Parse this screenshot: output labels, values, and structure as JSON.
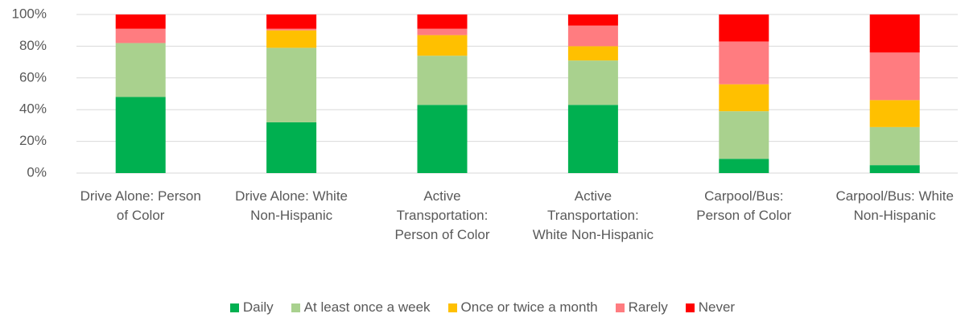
{
  "chart_data": {
    "type": "stacked_bar",
    "categories": [
      "Drive Alone: Person of Color",
      "Drive Alone: White Non-Hispanic",
      "Active Transportation: Person of Color",
      "Active Transportation: White Non-Hispanic",
      "Carpool/Bus: Person of Color",
      "Carpool/Bus: White Non-Hispanic"
    ],
    "series": [
      {
        "name": "Daily",
        "color": "#00b050",
        "values": [
          48,
          32,
          43,
          43,
          9,
          5
        ]
      },
      {
        "name": "At least once a week",
        "color": "#a9d18e",
        "values": [
          34,
          47,
          31,
          28,
          30,
          24
        ]
      },
      {
        "name": "Once or twice a month",
        "color": "#ffc000",
        "values": [
          0,
          11,
          13,
          9,
          17,
          17
        ]
      },
      {
        "name": "Rarely",
        "color": "#ff7c80",
        "values": [
          9,
          1,
          4,
          13,
          27,
          30
        ]
      },
      {
        "name": "Never",
        "color": "#ff0000",
        "values": [
          9,
          9,
          9,
          7,
          17,
          24
        ]
      }
    ],
    "ylim": [
      0,
      100
    ],
    "yticks": [
      {
        "value": 0,
        "label": "0%"
      },
      {
        "value": 20,
        "label": "20%"
      },
      {
        "value": 40,
        "label": "40%"
      },
      {
        "value": 60,
        "label": "60%"
      },
      {
        "value": 80,
        "label": "80%"
      },
      {
        "value": 100,
        "label": "100%"
      }
    ],
    "grid": true,
    "legend": "bottom"
  }
}
